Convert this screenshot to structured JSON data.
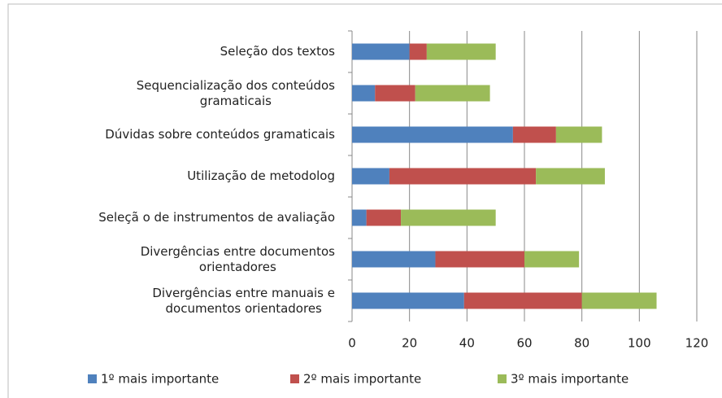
{
  "chart_data": {
    "type": "stacked_barh",
    "categories": [
      "Seleção dos textos",
      "Sequencialização dos conteúdos\ngramaticais",
      "Dúvidas sobre conteúdos gramaticais",
      "Utilização de metodolog",
      "Seleçã o de instrumentos de avaliação",
      "Divergências entre documentos\norientadores",
      "Divergências entre manuais e\ndocumentos orientadores"
    ],
    "series": [
      {
        "name": "1º mais importante",
        "color": "#4f81bd",
        "values": [
          20,
          8,
          56,
          13,
          5,
          29,
          39
        ]
      },
      {
        "name": "2º mais importante",
        "color": "#c0504d",
        "values": [
          6,
          14,
          15,
          51,
          12,
          31,
          41
        ]
      },
      {
        "name": "3º mais importante",
        "color": "#9bbb59",
        "values": [
          24,
          26,
          16,
          24,
          33,
          19,
          26
        ]
      }
    ],
    "xlim": [
      0,
      120
    ],
    "xticks": [
      0,
      20,
      40,
      60,
      80,
      100,
      120
    ],
    "grid": true,
    "legend": "bottom"
  }
}
